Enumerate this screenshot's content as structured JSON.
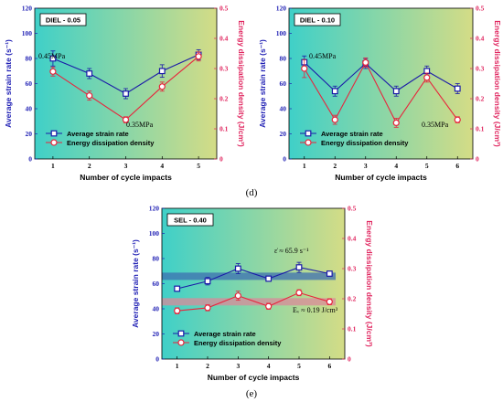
{
  "colors": {
    "strain": "#1a1aa8",
    "energy": "#e8243c",
    "left_axis": "#1f1fb4",
    "right_axis": "#e0245e",
    "bg_left": "#3fd0c8",
    "bg_right": "#d4dc86"
  },
  "captions": [
    "(d)",
    "(e)"
  ],
  "chart_data": [
    {
      "type": "line",
      "title": "DIEL - 0.05",
      "xlabel": "Number of cycle impacts",
      "ylabel_left": "Average strain rate (s⁻¹)",
      "ylabel_right": "Energy dissipation density (J/cm³)",
      "x": [
        1,
        2,
        3,
        4,
        5
      ],
      "xticks": [
        "1",
        "2",
        "3",
        "4",
        "5"
      ],
      "ylim_left": [
        0,
        120
      ],
      "yticks_left": [
        "0",
        "20",
        "40",
        "60",
        "80",
        "100",
        "120"
      ],
      "ylim_right": [
        0,
        0.5
      ],
      "yticks_right": [
        "0",
        "0.1",
        "0.2",
        "0.3",
        "0.4",
        "0.5"
      ],
      "series": [
        {
          "name": "Average strain rate",
          "axis": "left",
          "marker": "square",
          "values": [
            80,
            68,
            52,
            70,
            83
          ],
          "errors": [
            6,
            4,
            4,
            5,
            4
          ]
        },
        {
          "name": "Energy dissipation density",
          "axis": "right",
          "marker": "circle",
          "values": [
            0.29,
            0.21,
            0.13,
            0.24,
            0.34
          ],
          "errors": [
            0.015,
            0.015,
            0.01,
            0.015,
            0.015
          ]
        }
      ],
      "annotations": [
        "0.45MPa",
        "0.35MPa"
      ],
      "legend": "bottom-left"
    },
    {
      "type": "line",
      "title": "DIEL - 0.10",
      "xlabel": "Number of cycle impacts",
      "ylabel_left": "Average strain rate (s⁻¹)",
      "ylabel_right": "Energy dissipation density (J/cm³)",
      "x": [
        1,
        2,
        3,
        4,
        5,
        6
      ],
      "xticks": [
        "1",
        "2",
        "3",
        "4",
        "5",
        "6"
      ],
      "ylim_left": [
        0,
        120
      ],
      "yticks_left": [
        "0",
        "20",
        "40",
        "60",
        "80",
        "100",
        "120"
      ],
      "ylim_right": [
        0,
        0.5
      ],
      "yticks_right": [
        "0",
        "0.1",
        "0.2",
        "0.3",
        "0.4",
        "0.5"
      ],
      "series": [
        {
          "name": "Average strain rate",
          "axis": "left",
          "marker": "square",
          "values": [
            77,
            54,
            76,
            54,
            70,
            56
          ],
          "errors": [
            5,
            4,
            4,
            4,
            4,
            4
          ]
        },
        {
          "name": "Energy dissipation density",
          "axis": "right",
          "marker": "circle",
          "values": [
            0.3,
            0.13,
            0.32,
            0.12,
            0.27,
            0.13
          ],
          "errors": [
            0.03,
            0.015,
            0.015,
            0.015,
            0.015,
            0.01
          ]
        }
      ],
      "annotations": [
        "0.45MPa",
        "0.35MPa"
      ],
      "legend": "bottom-left"
    },
    {
      "type": "line",
      "title": "SEL - 0.40",
      "xlabel": "Number of cycle impacts",
      "ylabel_left": "Average strain rate (s⁻¹)",
      "ylabel_right": "Energy dissipation density (J/cm³)",
      "x": [
        1,
        2,
        3,
        4,
        5,
        6
      ],
      "xticks": [
        "1",
        "2",
        "3",
        "4",
        "5",
        "6"
      ],
      "ylim_left": [
        0,
        120
      ],
      "yticks_left": [
        "0",
        "20",
        "40",
        "60",
        "80",
        "100",
        "120"
      ],
      "ylim_right": [
        0,
        0.5
      ],
      "yticks_right": [
        "0",
        "0.1",
        "0.2",
        "0.3",
        "0.4",
        "0.5"
      ],
      "series": [
        {
          "name": "Average strain rate",
          "axis": "left",
          "marker": "square",
          "values": [
            56,
            62,
            72,
            64,
            73,
            68
          ],
          "errors": [
            2,
            3,
            4,
            2,
            4,
            2
          ]
        },
        {
          "name": "Energy dissipation density",
          "axis": "right",
          "marker": "circle",
          "values": [
            0.16,
            0.17,
            0.21,
            0.175,
            0.22,
            0.19
          ],
          "errors": [
            0.01,
            0.01,
            0.015,
            0.01,
            0.01,
            0.01
          ]
        }
      ],
      "bands": [
        {
          "axis": "left",
          "value": 65.9,
          "label": "ε̇ ≈ 65.9 s⁻¹"
        },
        {
          "axis": "right",
          "value": 0.19,
          "label": "Eᵥ ≈ 0.19 J/cm³"
        }
      ],
      "legend": "bottom-left"
    }
  ]
}
